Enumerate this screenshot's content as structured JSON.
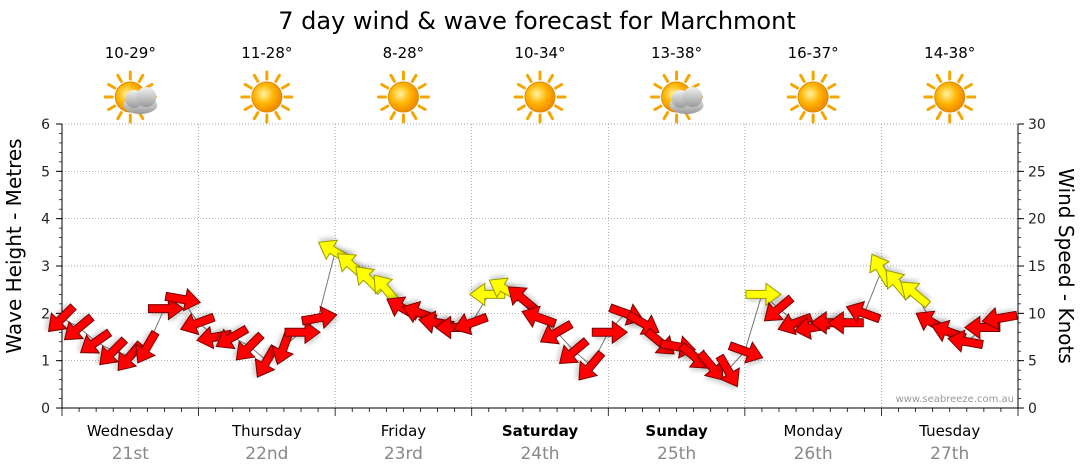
{
  "chart_data": {
    "type": "line",
    "title": "7 day wind & wave forecast for Marchmont",
    "ylabel_left": "Wave Height - Metres",
    "ylabel_right": "Wind Speed - Knots",
    "ylim_left": [
      0,
      6
    ],
    "ylim_right": [
      0,
      30
    ],
    "yticks_left": [
      "0",
      "1",
      "2",
      "3",
      "4",
      "5",
      "6"
    ],
    "yticks_right": [
      "0",
      "5",
      "10",
      "15",
      "20",
      "25",
      "30"
    ],
    "grid": "dotted",
    "credit": "www.seabreeze.com.au",
    "days": [
      {
        "name": "Wednesday",
        "date": "21st",
        "temp": "10-29°",
        "icon": "partly-cloudy-icon",
        "bold": false
      },
      {
        "name": "Thursday",
        "date": "22nd",
        "temp": "11-28°",
        "icon": "sun-icon",
        "bold": false
      },
      {
        "name": "Friday",
        "date": "23rd",
        "temp": "8-28°",
        "icon": "sun-icon",
        "bold": false
      },
      {
        "name": "Saturday",
        "date": "24th",
        "temp": "10-34°",
        "icon": "sun-icon",
        "bold": true
      },
      {
        "name": "Sunday",
        "date": "25th",
        "temp": "13-38°",
        "icon": "partly-cloudy-icon",
        "bold": true
      },
      {
        "name": "Monday",
        "date": "26th",
        "temp": "16-37°",
        "icon": "sun-icon",
        "bold": false
      },
      {
        "name": "Tuesday",
        "date": "27th",
        "temp": "14-38°",
        "icon": "sun-icon",
        "bold": false
      }
    ],
    "wind_series": {
      "units": "knots",
      "x_hours": [
        0,
        3,
        6,
        9,
        12,
        15,
        18,
        21,
        24,
        27,
        30,
        33,
        36,
        39,
        42,
        45,
        48,
        51,
        54,
        57,
        60,
        63,
        66,
        69,
        72,
        75,
        78,
        81,
        84,
        87,
        90,
        93,
        96,
        99,
        102,
        105,
        108,
        111,
        114,
        117,
        120,
        123,
        126,
        129,
        132,
        135,
        138,
        141,
        144,
        147,
        150,
        153,
        156,
        159,
        162,
        165
      ],
      "speed": [
        9.5,
        8.5,
        7,
        6,
        5.5,
        6.5,
        10.5,
        11.5,
        9,
        7.5,
        7.5,
        6.5,
        5,
        6.5,
        8,
        9.5,
        16.5,
        15,
        13.5,
        12.5,
        10.5,
        10,
        9,
        8.5,
        9,
        12,
        12.5,
        11.5,
        9.5,
        8,
        6,
        4.5,
        8,
        10,
        9,
        7,
        6.5,
        5.5,
        4.5,
        4,
        6,
        12,
        10.5,
        9,
        8.5,
        9,
        9,
        10,
        14.5,
        13,
        12,
        9,
        8,
        7,
        8.5,
        9.5
      ],
      "direction_deg": [
        225,
        230,
        235,
        225,
        220,
        210,
        90,
        100,
        250,
        260,
        240,
        225,
        210,
        200,
        90,
        80,
        300,
        310,
        315,
        320,
        300,
        290,
        280,
        270,
        250,
        270,
        300,
        310,
        290,
        240,
        230,
        220,
        90,
        110,
        120,
        130,
        100,
        130,
        140,
        150,
        110,
        90,
        230,
        250,
        260,
        270,
        270,
        290,
        330,
        320,
        310,
        300,
        290,
        280,
        270,
        260
      ],
      "color": "#ff0000",
      "strong_color": "#ffff00"
    }
  }
}
